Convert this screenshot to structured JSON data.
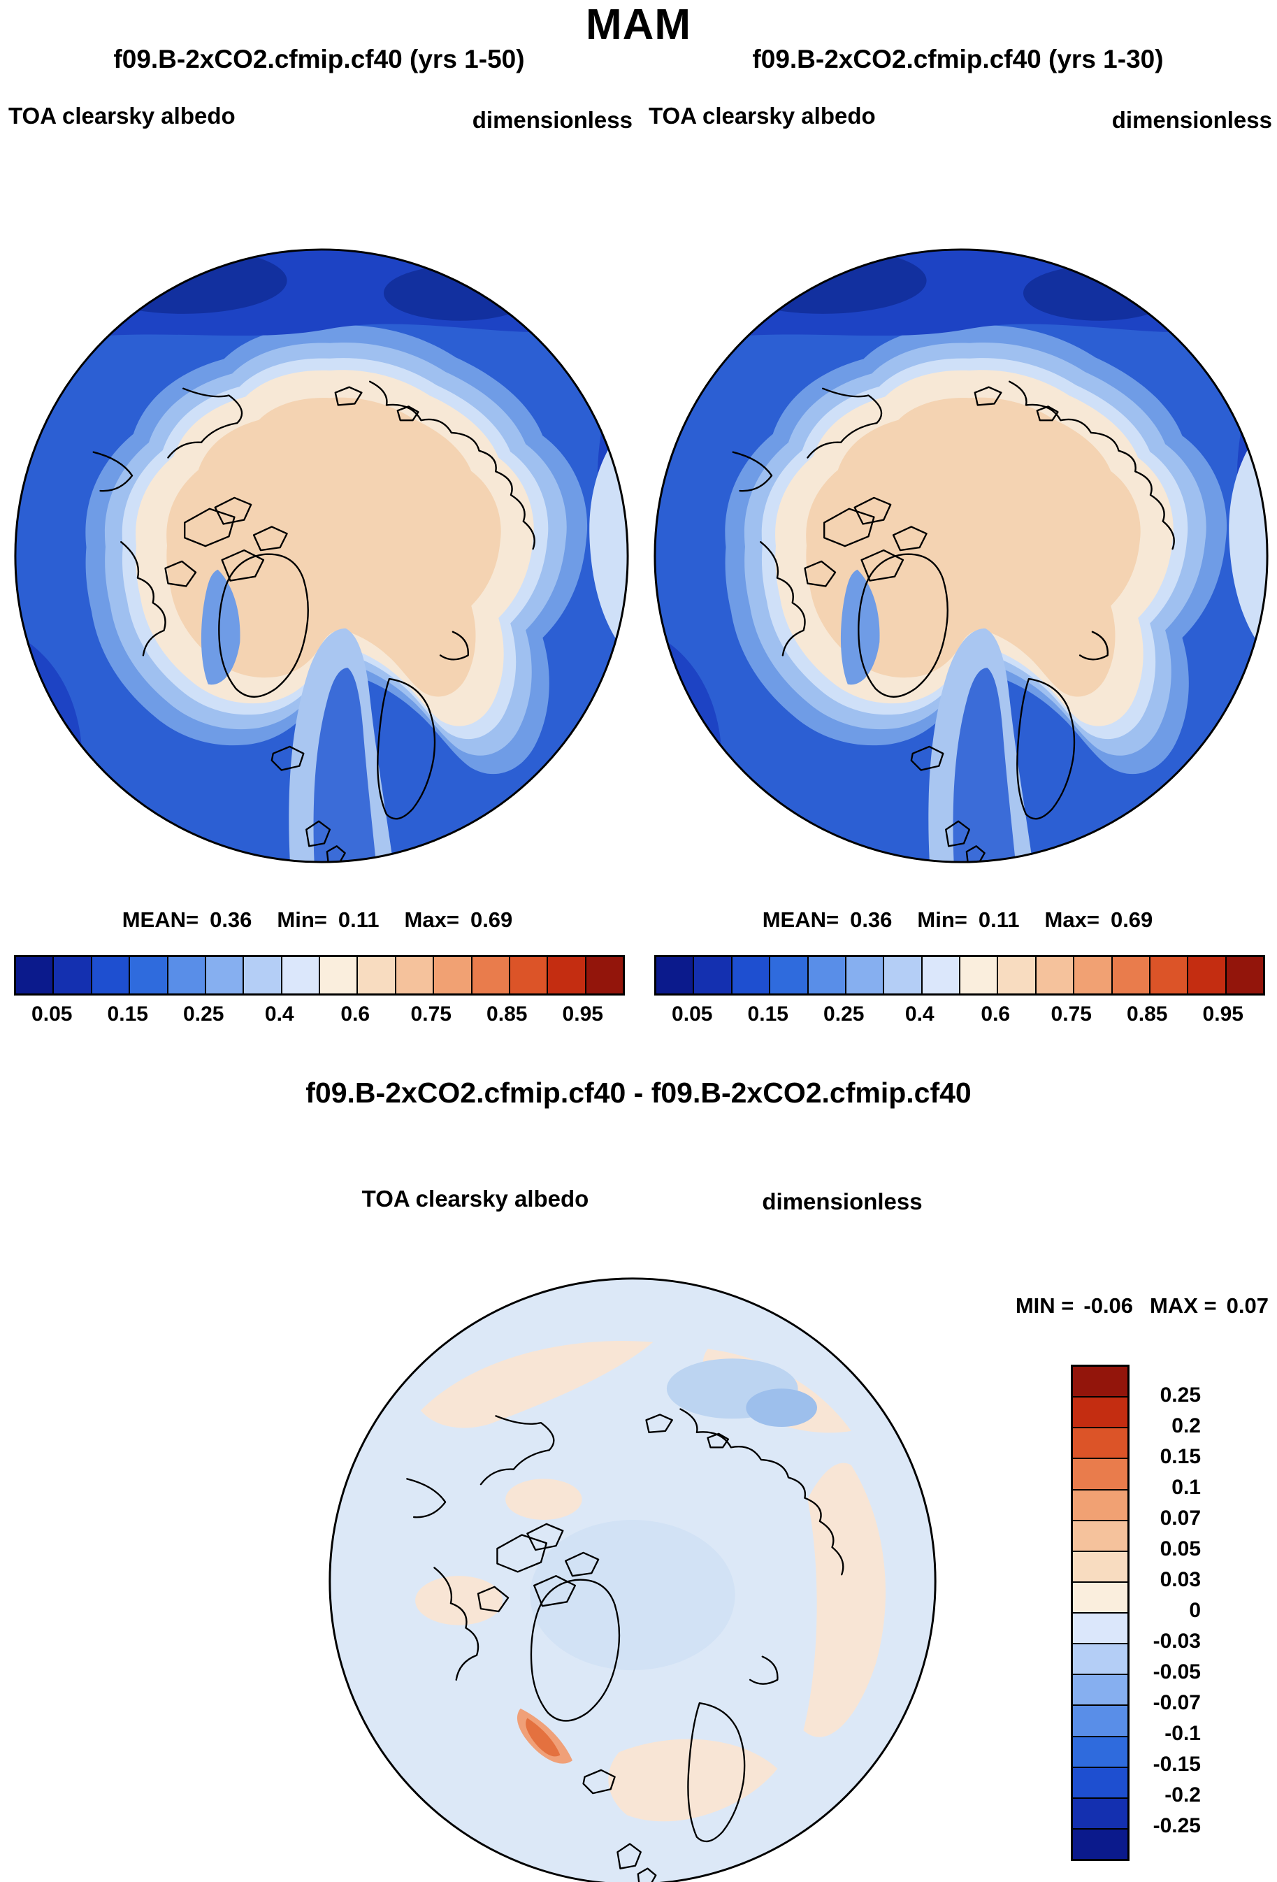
{
  "title": "MAM",
  "panels": [
    {
      "run_title": "f09.B-2xCO2.cfmip.cf40 (yrs 1-50)",
      "var_label": "TOA clearsky albedo",
      "units": "dimensionless",
      "stats": {
        "mean_label": "MEAN=",
        "mean": "0.36",
        "min_label": "Min=",
        "min": "0.11",
        "max_label": "Max=",
        "max": "0.69"
      }
    },
    {
      "run_title": "f09.B-2xCO2.cfmip.cf40 (yrs 1-30)",
      "var_label": "TOA clearsky albedo",
      "units": "dimensionless",
      "stats": {
        "mean_label": "MEAN=",
        "mean": "0.36",
        "min_label": "Min=",
        "min": "0.11",
        "max_label": "Max=",
        "max": "0.69"
      }
    }
  ],
  "albedo_colorbar": {
    "colors": [
      "#0b1a8c",
      "#1430b0",
      "#1e4fd0",
      "#2f6bdd",
      "#598ee8",
      "#86aff0",
      "#b4cef6",
      "#dbe7fb",
      "#faeedd",
      "#f8dcc0",
      "#f5c29c",
      "#f1a173",
      "#e97c4c",
      "#dc5428",
      "#c42d11",
      "#93150b"
    ],
    "tick_labels": [
      "0.05",
      "0.15",
      "0.25",
      "0.4",
      "0.6",
      "0.75",
      "0.85",
      "0.95"
    ]
  },
  "diff_panel": {
    "title": "f09.B-2xCO2.cfmip.cf40 - f09.B-2xCO2.cfmip.cf40",
    "var_label": "TOA clearsky albedo",
    "units": "dimensionless",
    "stats": {
      "min_label": "MIN =",
      "min": "-0.06",
      "max_label": "MAX =",
      "max": "0.07"
    },
    "colorbar": {
      "colors": [
        "#93150b",
        "#c42d11",
        "#dc5428",
        "#e97c4c",
        "#f1a173",
        "#f5c29c",
        "#f8dcc0",
        "#faeedd",
        "#dbe7fb",
        "#b4cef6",
        "#86aff0",
        "#598ee8",
        "#2f6bdd",
        "#1e4fd0",
        "#1430b0",
        "#0b1a8c"
      ],
      "tick_labels": [
        "0.25",
        "0.2",
        "0.15",
        "0.1",
        "0.07",
        "0.05",
        "0.03",
        "0",
        "-0.03",
        "-0.05",
        "-0.07",
        "-0.1",
        "-0.15",
        "-0.2",
        "-0.25"
      ]
    }
  },
  "chart_data": [
    {
      "type": "heatmap",
      "subtype": "north-polar-stereographic-contour-map",
      "season": "MAM",
      "title": "f09.B-2xCO2.cfmip.cf40 (yrs 1-50)",
      "variable": "TOA clearsky albedo",
      "units": "dimensionless",
      "stats": {
        "mean": 0.36,
        "min": 0.11,
        "max": 0.69
      },
      "contour_levels": [
        0.05,
        0.1,
        0.15,
        0.2,
        0.25,
        0.3,
        0.4,
        0.5,
        0.6,
        0.7,
        0.75,
        0.8,
        0.85,
        0.9,
        0.95
      ],
      "labeled_levels": [
        0.05,
        0.15,
        0.25,
        0.4,
        0.6,
        0.75,
        0.85,
        0.95
      ],
      "legend_position": "bottom",
      "palette": "16-class blue-to-red diverging",
      "description": "High clearsky albedo (about 0.55-0.7, cream/peach shades) over Arctic sea ice, Greenland and snow-covered land; low albedo (about 0.05-0.2, blue shades) over open ocean; sharp ice-edge gradient with a blue North Atlantic tongue extending poleward past Norway."
    },
    {
      "type": "heatmap",
      "subtype": "north-polar-stereographic-contour-map",
      "season": "MAM",
      "title": "f09.B-2xCO2.cfmip.cf40 (yrs 1-30)",
      "variable": "TOA clearsky albedo",
      "units": "dimensionless",
      "stats": {
        "mean": 0.36,
        "min": 0.11,
        "max": 0.69
      },
      "contour_levels": [
        0.05,
        0.1,
        0.15,
        0.2,
        0.25,
        0.3,
        0.4,
        0.5,
        0.6,
        0.7,
        0.75,
        0.8,
        0.85,
        0.9,
        0.95
      ],
      "labeled_levels": [
        0.05,
        0.15,
        0.25,
        0.4,
        0.6,
        0.75,
        0.85,
        0.95
      ],
      "legend_position": "bottom",
      "palette": "16-class blue-to-red diverging",
      "description": "Visually nearly identical to the yrs 1-50 panel: same ice-covered high-albedo Arctic interior and low-albedo surrounding oceans."
    },
    {
      "type": "heatmap",
      "subtype": "difference-map north-polar-stereographic",
      "season": "MAM",
      "title": "f09.B-2xCO2.cfmip.cf40 - f09.B-2xCO2.cfmip.cf40",
      "variable": "TOA clearsky albedo",
      "units": "dimensionless",
      "stats": {
        "min": -0.06,
        "max": 0.07
      },
      "contour_levels": [
        -0.25,
        -0.2,
        -0.15,
        -0.1,
        -0.07,
        -0.05,
        -0.03,
        0,
        0.03,
        0.05,
        0.07,
        0.1,
        0.15,
        0.2,
        0.25
      ],
      "legend_position": "right",
      "palette": "16-class red(positive)-to-blue(negative) diverging",
      "description": "Differences are small (between -0.06 and 0.07): weak negative values (pale blue, ~-0.03 to 0) over the central Arctic and sub-polar seas, weak positive values (pale pink, 0 to ~0.05) over land margins and peripheral oceans, with one small stronger positive streak (~0.07-0.1) near the Norwegian coast."
    }
  ]
}
